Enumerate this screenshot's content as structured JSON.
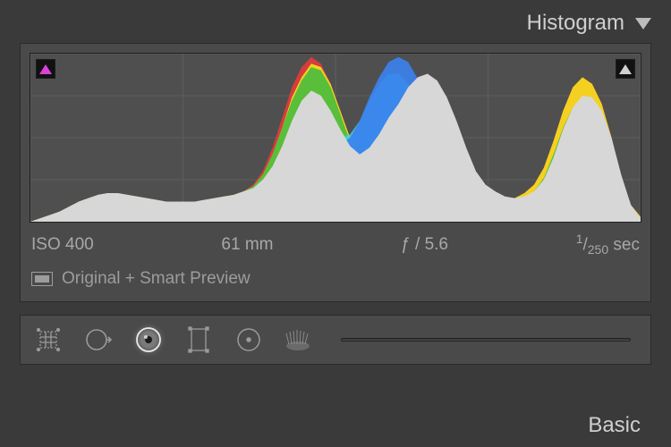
{
  "histogram_panel": {
    "title": "Histogram",
    "clipping": {
      "shadow_color": "#d941d9",
      "highlight_color": "#d0d0d0"
    },
    "chart": {
      "type": "histogram",
      "background_color": "#4f4f4f",
      "grid_color": "#5c5c5c",
      "xgrid": [
        0,
        64,
        128,
        192,
        256
      ],
      "ygrid": [
        0,
        25,
        50,
        75,
        100
      ],
      "xlim": [
        0,
        256
      ],
      "ylim": [
        0,
        100
      ],
      "channels": {
        "luminance": {
          "color": "#d7d7d7",
          "fill_opacity": 1.0,
          "values": [
            0,
            2,
            4,
            6,
            9,
            12,
            14,
            16,
            17,
            17,
            16,
            15,
            14,
            13,
            12,
            12,
            12,
            12,
            13,
            14,
            15,
            16,
            18,
            20,
            25,
            33,
            45,
            60,
            72,
            78,
            75,
            66,
            55,
            45,
            40,
            44,
            52,
            62,
            70,
            80,
            86,
            88,
            84,
            74,
            60,
            44,
            30,
            22,
            18,
            15,
            14,
            15,
            18,
            25,
            38,
            55,
            68,
            75,
            74,
            66,
            50,
            28,
            10,
            2
          ]
        },
        "blue": {
          "color": "#3b82f0",
          "fill_opacity": 0.9,
          "values": [
            0,
            1,
            2,
            3,
            5,
            7,
            9,
            11,
            12,
            12,
            12,
            11,
            11,
            10,
            10,
            10,
            10,
            11,
            12,
            13,
            14,
            15,
            17,
            20,
            25,
            32,
            40,
            48,
            54,
            55,
            52,
            48,
            46,
            50,
            60,
            74,
            86,
            95,
            98,
            95,
            85,
            70,
            52,
            36,
            24,
            17,
            13,
            11,
            10,
            10,
            11,
            13,
            17,
            24,
            34,
            46,
            54,
            56,
            52,
            42,
            28,
            14,
            5,
            1
          ]
        },
        "green": {
          "color": "#3dbb3d",
          "fill_opacity": 0.85,
          "values": [
            0,
            2,
            4,
            6,
            9,
            12,
            14,
            16,
            17,
            17,
            16,
            15,
            14,
            13,
            12,
            12,
            12,
            12,
            13,
            14,
            15,
            16,
            18,
            21,
            28,
            40,
            56,
            72,
            84,
            92,
            90,
            80,
            64,
            48,
            38,
            36,
            40,
            48,
            56,
            62,
            64,
            62,
            56,
            46,
            34,
            24,
            18,
            14,
            12,
            11,
            12,
            14,
            18,
            26,
            40,
            56,
            68,
            74,
            70,
            58,
            40,
            20,
            7,
            2
          ]
        },
        "red": {
          "color": "#e23b3b",
          "fill_opacity": 0.9,
          "values": [
            0,
            2,
            4,
            6,
            9,
            12,
            14,
            16,
            17,
            17,
            16,
            15,
            14,
            13,
            12,
            12,
            12,
            12,
            13,
            14,
            15,
            16,
            18,
            22,
            30,
            44,
            62,
            80,
            92,
            98,
            94,
            82,
            66,
            50,
            40,
            38,
            42,
            50,
            58,
            66,
            70,
            70,
            66,
            56,
            42,
            30,
            22,
            17,
            14,
            13,
            14,
            17,
            22,
            32,
            48,
            66,
            80,
            86,
            82,
            70,
            50,
            26,
            10,
            3
          ]
        },
        "yellow": {
          "color": "#f5d920",
          "fill_opacity": 0.95,
          "values": [
            0,
            2,
            4,
            6,
            9,
            12,
            14,
            16,
            17,
            17,
            16,
            15,
            14,
            13,
            12,
            12,
            12,
            12,
            13,
            14,
            15,
            16,
            18,
            21,
            28,
            40,
            56,
            74,
            86,
            94,
            92,
            82,
            66,
            50,
            40,
            38,
            42,
            50,
            58,
            66,
            70,
            70,
            66,
            56,
            42,
            30,
            22,
            17,
            14,
            13,
            14,
            17,
            22,
            32,
            48,
            66,
            80,
            86,
            82,
            70,
            50,
            26,
            10,
            3
          ]
        },
        "cyan": {
          "color": "#3fd6e0",
          "fill_opacity": 0.85,
          "values": [
            0,
            1,
            2,
            3,
            5,
            7,
            9,
            11,
            12,
            12,
            12,
            11,
            11,
            10,
            10,
            10,
            10,
            11,
            12,
            13,
            14,
            15,
            17,
            20,
            25,
            32,
            42,
            54,
            62,
            64,
            60,
            54,
            50,
            52,
            60,
            72,
            82,
            88,
            88,
            82,
            70,
            56,
            42,
            30,
            22,
            16,
            13,
            11,
            10,
            10,
            11,
            13,
            17,
            24,
            34,
            46,
            54,
            56,
            52,
            42,
            28,
            14,
            5,
            1
          ]
        }
      },
      "draw_order": [
        "red",
        "yellow",
        "green",
        "cyan",
        "blue",
        "luminance"
      ]
    },
    "meta": {
      "iso_label": "ISO 400",
      "focal_label": "61 mm",
      "aperture_label": "ƒ / 5.6",
      "shutter_numerator": "1",
      "shutter_denominator": "250",
      "shutter_unit": "sec"
    },
    "preview_label": "Original + Smart Preview"
  },
  "toolstrip": {
    "tools": [
      {
        "name": "crop-tool",
        "active": false
      },
      {
        "name": "spot-removal-tool",
        "active": false
      },
      {
        "name": "redeye-tool",
        "active": true
      },
      {
        "name": "graduated-filter-tool",
        "active": false
      },
      {
        "name": "radial-filter-tool",
        "active": false
      },
      {
        "name": "adjustment-brush-tool",
        "active": false
      }
    ]
  },
  "basic_panel": {
    "title": "Basic"
  }
}
